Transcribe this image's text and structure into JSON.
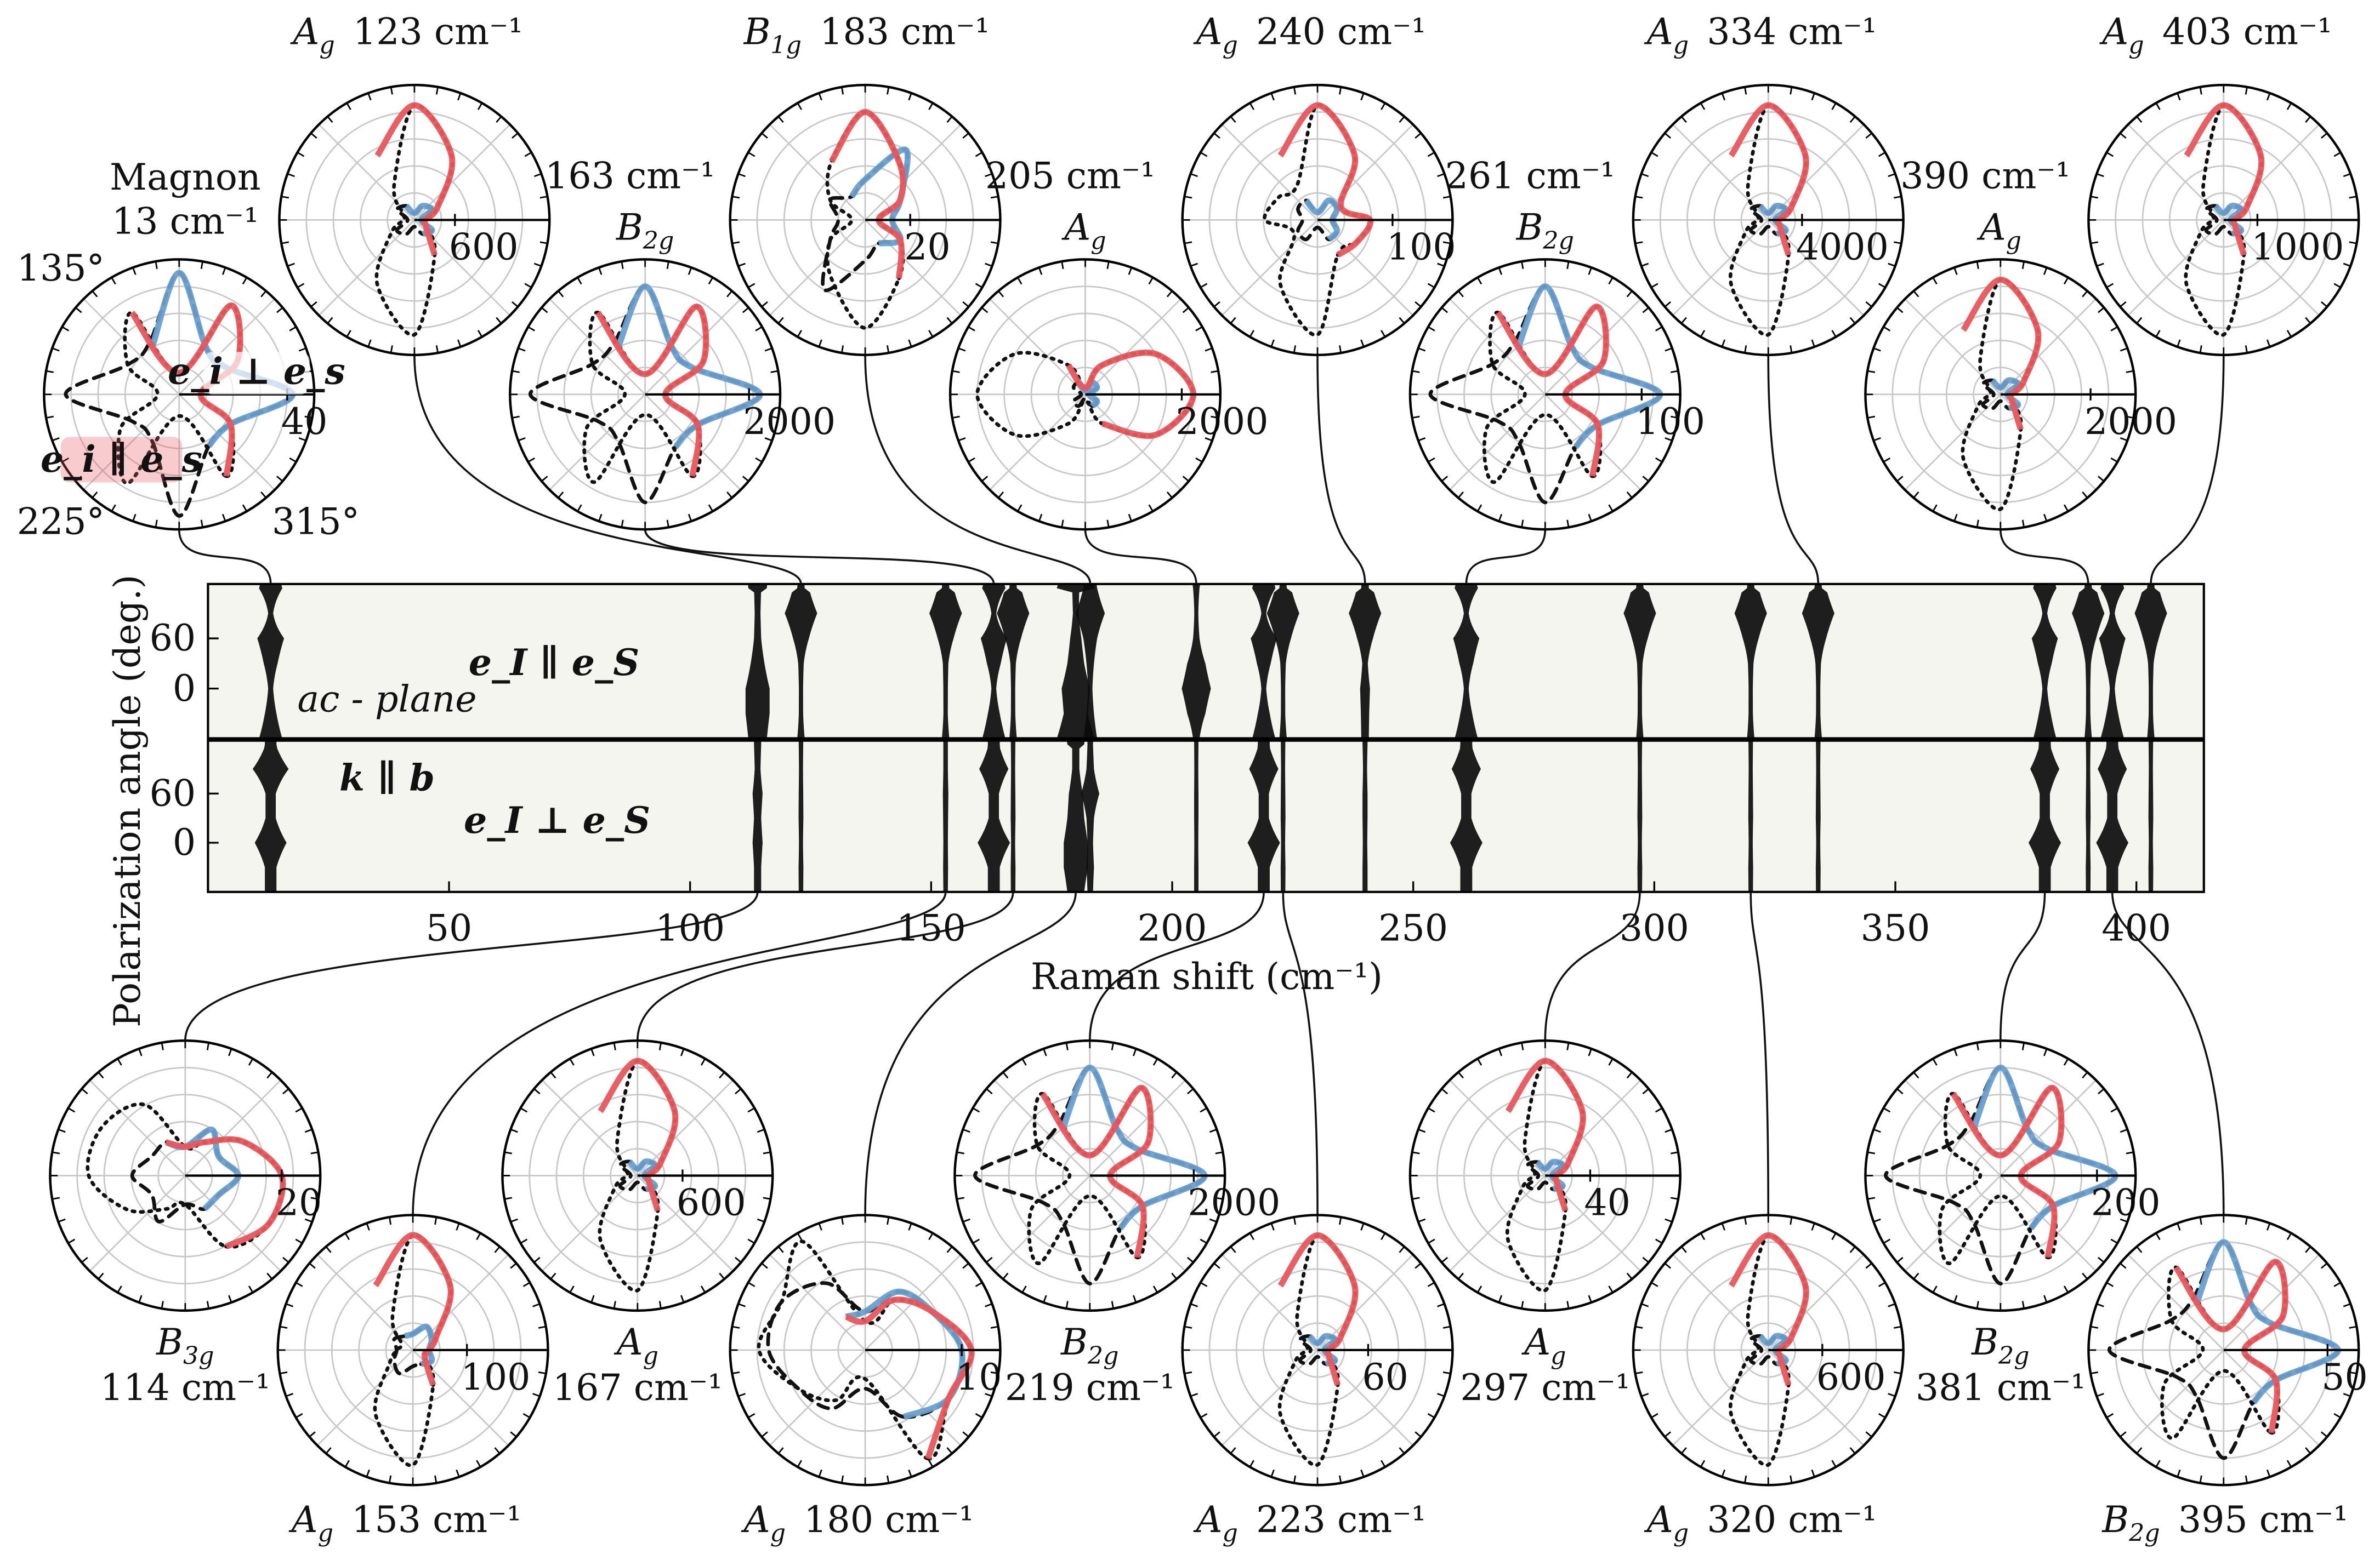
{
  "chart_data": {
    "type": "heatmap_polar",
    "xlabel": "Raman shift (cm⁻¹)",
    "ylabel": "Polarization angle (deg.)",
    "xlim": [
      0,
      414
    ],
    "xticks": [
      50,
      100,
      150,
      200,
      250,
      300,
      350,
      400
    ],
    "ylim": [
      -60,
      125
    ],
    "yticks": [
      0,
      60
    ],
    "annotations": [
      "e_I ∥ e_S",
      "ac - plane",
      "k ∥ b",
      "e_I ⊥ e_S"
    ],
    "series": [
      {
        "name": "e_i ∥ e_s",
        "color": "#e8575c"
      },
      {
        "name": "e_i ⊥ e_s",
        "color": "#6a9fd0"
      }
    ],
    "angle_labels": [
      "135°",
      "225°",
      "315°"
    ],
    "angles": [
      -60,
      -30,
      0,
      30,
      60,
      90,
      120
    ],
    "plots": [
      {
        "mode": "Magnon",
        "shift_label": "13 cm⁻¹",
        "shift": 13,
        "rlim": 50,
        "rtick": 40,
        "parallel": [
          35,
          22,
          8,
          25,
          38,
          8,
          35
        ],
        "perpendicular": [
          22,
          22,
          42,
          20,
          20,
          45,
          20
        ]
      },
      {
        "mode": "A",
        "sub": "g",
        "shift_label": "123 cm⁻¹",
        "shift": 123,
        "rlim": 2000,
        "rtick": 600,
        "parallel": [
          600,
          200,
          160,
          400,
          1100,
          1700,
          1100
        ],
        "perpendicular": [
          240,
          300,
          100,
          300,
          240,
          100,
          240
        ]
      },
      {
        "mode": "B",
        "sub": "2g",
        "shift_label": "163 cm⁻¹",
        "shift": 163,
        "rlim": 2600,
        "rtick": 2000,
        "parallel": [
          1820,
          1170,
          390,
          1300,
          1950,
          390,
          1820
        ],
        "perpendicular": [
          1170,
          1170,
          2210,
          1040,
          1040,
          2080,
          1040
        ]
      },
      {
        "mode": "B",
        "sub": "1g",
        "shift_label": "183 cm⁻¹",
        "shift": 183,
        "rlim": 60,
        "rtick": 20,
        "parallel": [
          30,
          18,
          6,
          18,
          30,
          48,
          30
        ],
        "perpendicular": [
          12,
          18,
          12,
          18,
          36,
          18,
          12
        ]
      },
      {
        "mode": "A",
        "sub": "g",
        "shift_label": "205 cm⁻¹",
        "shift": 205,
        "rlim": 2800,
        "rtick": 2000,
        "parallel": [
          700,
          1680,
          2240,
          1680,
          700,
          140,
          700
        ],
        "perpendicular": [
          280,
          280,
          84,
          280,
          280,
          84,
          280
        ]
      },
      {
        "mode": "A",
        "sub": "g",
        "shift_label": "240 cm⁻¹",
        "shift": 240,
        "rlim": 180,
        "rtick": 100,
        "parallel": [
          54,
          60,
          70,
          36,
          99,
          153,
          99
        ],
        "perpendicular": [
          30,
          30,
          20,
          30,
          30,
          10,
          30
        ]
      },
      {
        "mode": "B",
        "sub": "2g",
        "shift_label": "261 cm⁻¹",
        "shift": 261,
        "rlim": 140,
        "rtick": 100,
        "parallel": [
          98,
          63,
          21,
          70,
          105,
          21,
          98
        ],
        "perpendicular": [
          63,
          63,
          119,
          56,
          56,
          112,
          56
        ]
      },
      {
        "mode": "A",
        "sub": "g",
        "shift_label": "334 cm⁻¹",
        "shift": 334,
        "rlim": 16000,
        "rtick": 4000,
        "parallel": [
          4800,
          1600,
          1280,
          3200,
          8800,
          13600,
          8800
        ],
        "perpendicular": [
          1920,
          2400,
          800,
          2400,
          1920,
          800,
          1920
        ]
      },
      {
        "mode": "A",
        "sub": "g",
        "shift_label": "390 cm⁻¹",
        "shift": 390,
        "rlim": 3000,
        "rtick": 2000,
        "parallel": [
          900,
          300,
          240,
          600,
          1650,
          2550,
          1650
        ],
        "perpendicular": [
          360,
          450,
          150,
          450,
          360,
          150,
          360
        ]
      },
      {
        "mode": "A",
        "sub": "g",
        "shift_label": "403 cm⁻¹",
        "shift": 403,
        "rlim": 4000,
        "rtick": 1000,
        "parallel": [
          1200,
          400,
          320,
          800,
          2200,
          3400,
          2200
        ],
        "perpendicular": [
          480,
          600,
          200,
          600,
          480,
          200,
          480
        ]
      },
      {
        "mode": "B",
        "sub": "3g",
        "shift_label": "114 cm⁻¹",
        "shift": 114,
        "rlim": 28,
        "rtick": 20,
        "parallel": [
          17,
          20,
          20,
          14,
          8,
          6,
          8
        ],
        "perpendicular": [
          8,
          8,
          11,
          8,
          11,
          6,
          8
        ]
      },
      {
        "mode": "A",
        "sub": "g",
        "shift_label": "153 cm⁻¹",
        "shift": 153,
        "rlim": 250,
        "rtick": 100,
        "parallel": [
          75,
          25,
          30,
          50,
          138,
          213,
          138
        ],
        "perpendicular": [
          30,
          40,
          30,
          40,
          50,
          30,
          30
        ]
      },
      {
        "mode": "A",
        "sub": "g",
        "shift_label": "167 cm⁻¹",
        "shift": 167,
        "rlim": 1800,
        "rtick": 600,
        "parallel": [
          540,
          180,
          144,
          360,
          990,
          1530,
          990
        ],
        "perpendicular": [
          216,
          270,
          90,
          270,
          216,
          90,
          216
        ]
      },
      {
        "mode": "A",
        "sub": "g",
        "shift_label": "180 cm⁻¹",
        "shift": 180,
        "rlim": 14,
        "rtick": 10,
        "parallel": [
          13,
          10,
          11,
          8,
          6,
          3,
          4
        ],
        "perpendicular": [
          8,
          10,
          10,
          8,
          7,
          4,
          4
        ]
      },
      {
        "mode": "B",
        "sub": "2g",
        "shift_label": "219 cm⁻¹",
        "shift": 219,
        "rlim": 2600,
        "rtick": 2000,
        "parallel": [
          1820,
          1170,
          390,
          1300,
          1950,
          390,
          1820
        ],
        "perpendicular": [
          1170,
          1170,
          2210,
          1040,
          1040,
          2080,
          1040
        ]
      },
      {
        "mode": "A",
        "sub": "g",
        "shift_label": "223 cm⁻¹",
        "shift": 223,
        "rlim": 160,
        "rtick": 60,
        "parallel": [
          48,
          16,
          13,
          32,
          88,
          136,
          88
        ],
        "perpendicular": [
          19,
          24,
          8,
          24,
          19,
          8,
          19
        ]
      },
      {
        "mode": "A",
        "sub": "g",
        "shift_label": "297 cm⁻¹",
        "shift": 297,
        "rlim": 120,
        "rtick": 40,
        "parallel": [
          36,
          12,
          10,
          24,
          66,
          102,
          66
        ],
        "perpendicular": [
          14,
          18,
          6,
          18,
          14,
          6,
          14
        ]
      },
      {
        "mode": "A",
        "sub": "g",
        "shift_label": "320 cm⁻¹",
        "shift": 320,
        "rlim": 1500,
        "rtick": 600,
        "parallel": [
          450,
          150,
          120,
          300,
          825,
          1275,
          825
        ],
        "perpendicular": [
          180,
          225,
          75,
          225,
          180,
          75,
          180
        ]
      },
      {
        "mode": "B",
        "sub": "2g",
        "shift_label": "381 cm⁻¹",
        "shift": 381,
        "rlim": 280,
        "rtick": 200,
        "parallel": [
          196,
          126,
          42,
          140,
          210,
          42,
          196
        ],
        "perpendicular": [
          126,
          126,
          238,
          112,
          112,
          224,
          112
        ]
      },
      {
        "mode": "B",
        "sub": "2g",
        "shift_label": "395 cm⁻¹",
        "shift": 395,
        "rlim": 65,
        "rtick": 50,
        "parallel": [
          46,
          29,
          10,
          33,
          49,
          10,
          46
        ],
        "perpendicular": [
          29,
          29,
          55,
          26,
          26,
          52,
          26
        ]
      }
    ]
  }
}
